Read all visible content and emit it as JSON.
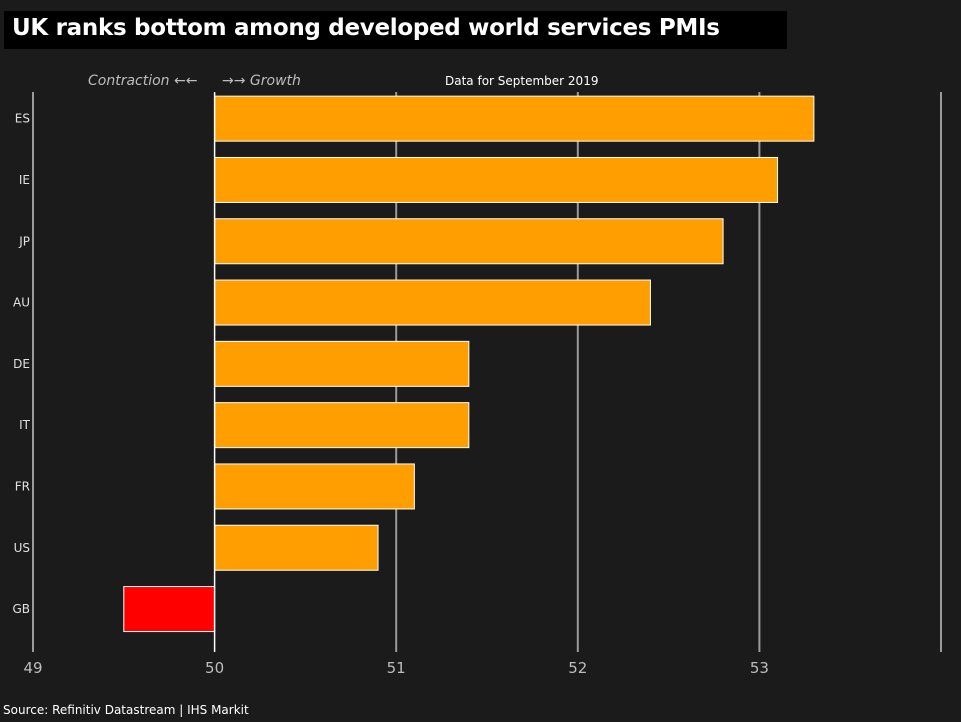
{
  "chart_data": {
    "type": "bar",
    "orientation": "horizontal",
    "title": "UK ranks bottom among developed world services PMIs",
    "subtitle": "Data for September 2019",
    "annotations": [
      "Contraction ←←",
      "→→ Growth"
    ],
    "source": "Source: Refinitiv Datastream | IHS Markit",
    "baseline": 50,
    "xlim": [
      49,
      54
    ],
    "x_ticks": [
      49,
      50,
      51,
      52,
      53
    ],
    "grid": true,
    "categories": [
      "ES",
      "IE",
      "JP",
      "AU",
      "DE",
      "IT",
      "FR",
      "US",
      "GB"
    ],
    "values": [
      53.3,
      53.1,
      52.8,
      52.4,
      51.4,
      51.4,
      51.1,
      50.9,
      49.5
    ]
  },
  "colors": {
    "growth_bar": "#ff9e00",
    "contraction_bar": "#ff0000",
    "grid": "#9a9a9a",
    "baseline": "#ffffff"
  }
}
